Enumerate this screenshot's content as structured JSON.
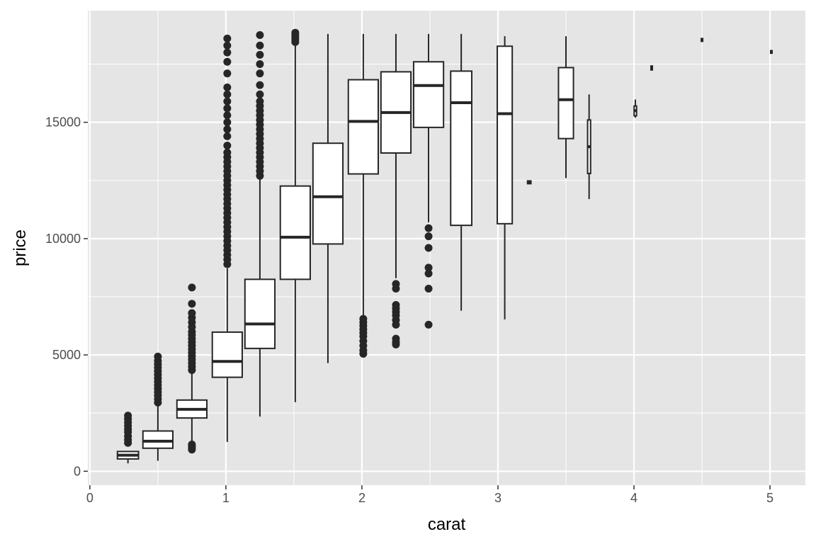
{
  "chart_data": {
    "type": "boxplot",
    "xlabel": "carat",
    "ylabel": "price",
    "xlim": [
      -0.015,
      5.26
    ],
    "ylim": [
      -600,
      19800
    ],
    "x_ticks": [
      0,
      1,
      2,
      3,
      4,
      5
    ],
    "x_tick_labels": [
      "0",
      "1",
      "2",
      "3",
      "4",
      "5"
    ],
    "y_ticks": [
      0,
      5000,
      10000,
      15000
    ],
    "y_tick_labels": [
      "0",
      "5000",
      "10000",
      "15000"
    ],
    "x_minor_ticks": [
      0.5,
      1.5,
      2.5,
      3.5,
      4.5
    ],
    "y_minor_ticks": [
      2500,
      7500,
      12500,
      17500
    ],
    "grid": true,
    "colors": {
      "panel_bg": "#e5e5e5",
      "grid": "#ffffff",
      "box_fill": "#ffffff",
      "box_line": "#262626",
      "tick_text": "#4d4d4d"
    },
    "boxes": [
      {
        "x": 0.28,
        "width": 0.155,
        "lower_whisker": 340,
        "q1": 530,
        "median": 690,
        "q3": 850,
        "upper_whisker": 870,
        "outliers": [
          1220,
          1350,
          1500,
          1680,
          1800,
          1950,
          2100,
          2250,
          2390
        ]
      },
      {
        "x": 0.5,
        "width": 0.22,
        "lower_whisker": 450,
        "q1": 990,
        "median": 1290,
        "q3": 1730,
        "upper_whisker": 2850,
        "outliers": [
          2950,
          3100,
          3250,
          3400,
          3550,
          3700,
          3850,
          4000,
          4150,
          4300,
          4450,
          4600,
          4750,
          4930
        ]
      },
      {
        "x": 0.75,
        "width": 0.22,
        "lower_whisker": 1150,
        "q1": 2290,
        "median": 2660,
        "q3": 3060,
        "upper_whisker": 4200,
        "outliers": [
          930,
          1000,
          1080,
          1150,
          4350,
          4500,
          4650,
          4800,
          4950,
          5100,
          5250,
          5400,
          5550,
          5700,
          5850,
          6000,
          6200,
          6400,
          6600,
          6800,
          7200,
          7900
        ]
      },
      {
        "x": 1.01,
        "width": 0.22,
        "lower_whisker": 1260,
        "q1": 4040,
        "median": 4720,
        "q3": 5980,
        "upper_whisker": 8720,
        "outliers": [
          8900,
          9100,
          9300,
          9500,
          9700,
          9900,
          10100,
          10300,
          10500,
          10700,
          10900,
          11100,
          11300,
          11500,
          11700,
          11900,
          12100,
          12300,
          12500,
          12700,
          12900,
          13100,
          13300,
          13500,
          13700,
          14000,
          14400,
          14700,
          15000,
          15300,
          15600,
          15900,
          16200,
          16500,
          17100,
          17600,
          18000,
          18300,
          18600
        ]
      },
      {
        "x": 1.25,
        "width": 0.22,
        "lower_whisker": 2350,
        "q1": 5280,
        "median": 6330,
        "q3": 8250,
        "upper_whisker": 12600,
        "outliers": [
          12700,
          12900,
          13100,
          13300,
          13500,
          13700,
          13900,
          14100,
          14300,
          14500,
          14700,
          14900,
          15100,
          15300,
          15500,
          15700,
          15900,
          16200,
          16600,
          17100,
          17500,
          17900,
          18300,
          18750
        ]
      },
      {
        "x": 1.51,
        "width": 0.22,
        "lower_whisker": 2970,
        "q1": 8250,
        "median": 10060,
        "q3": 12260,
        "upper_whisker": 18400,
        "outliers": [
          18450,
          18550,
          18650,
          18750,
          18850
        ]
      },
      {
        "x": 1.75,
        "width": 0.22,
        "lower_whisker": 4650,
        "q1": 9770,
        "median": 11800,
        "q3": 14100,
        "upper_whisker": 18800,
        "outliers": []
      },
      {
        "x": 2.01,
        "width": 0.22,
        "lower_whisker": 6700,
        "q1": 12780,
        "median": 15040,
        "q3": 16830,
        "upper_whisker": 18800,
        "outliers": [
          5050,
          5200,
          5400,
          5600,
          5800,
          5950,
          6100,
          6250,
          6400,
          6550
        ]
      },
      {
        "x": 2.25,
        "width": 0.22,
        "lower_whisker": 8300,
        "q1": 13680,
        "median": 15420,
        "q3": 17170,
        "upper_whisker": 18800,
        "outliers": [
          5450,
          5550,
          5700,
          6300,
          6500,
          6700,
          6850,
          7000,
          7150,
          7850,
          8050
        ]
      },
      {
        "x": 2.49,
        "width": 0.22,
        "lower_whisker": 10700,
        "q1": 14780,
        "median": 16580,
        "q3": 17600,
        "upper_whisker": 18800,
        "outliers": [
          6300,
          7850,
          8500,
          8750,
          9600,
          10100,
          10450
        ]
      },
      {
        "x": 2.73,
        "width": 0.155,
        "lower_whisker": 6900,
        "q1": 10570,
        "median": 15840,
        "q3": 17200,
        "upper_whisker": 18800,
        "outliers": []
      },
      {
        "x": 3.05,
        "width": 0.11,
        "lower_whisker": 6530,
        "q1": 10640,
        "median": 15370,
        "q3": 18270,
        "upper_whisker": 18700,
        "outliers": []
      },
      {
        "x": 3.23,
        "width": 0.025,
        "lower_whisker": 12360,
        "q1": 12360,
        "median": 12420,
        "q3": 12480,
        "upper_whisker": 12480,
        "outliers": []
      },
      {
        "x": 3.5,
        "width": 0.11,
        "lower_whisker": 12600,
        "q1": 14300,
        "median": 15970,
        "q3": 17350,
        "upper_whisker": 18700,
        "outliers": []
      },
      {
        "x": 3.67,
        "width": 0.022,
        "lower_whisker": 11700,
        "q1": 12800,
        "median": 13950,
        "q3": 15100,
        "upper_whisker": 16200,
        "outliers": []
      },
      {
        "x": 4.01,
        "width": 0.018,
        "lower_whisker": 15200,
        "q1": 15280,
        "median": 15500,
        "q3": 15700,
        "upper_whisker": 15980,
        "outliers": []
      },
      {
        "x": 4.13,
        "width": 0.006,
        "lower_whisker": 17250,
        "q1": 17250,
        "median": 17330,
        "q3": 17420,
        "upper_whisker": 17420,
        "outliers": []
      },
      {
        "x": 4.5,
        "width": 0.006,
        "lower_whisker": 18480,
        "q1": 18480,
        "median": 18530,
        "q3": 18600,
        "upper_whisker": 18600,
        "outliers": []
      },
      {
        "x": 5.01,
        "width": 0.006,
        "lower_whisker": 17970,
        "q1": 17970,
        "median": 18020,
        "q3": 18080,
        "upper_whisker": 18080,
        "outliers": []
      }
    ]
  }
}
